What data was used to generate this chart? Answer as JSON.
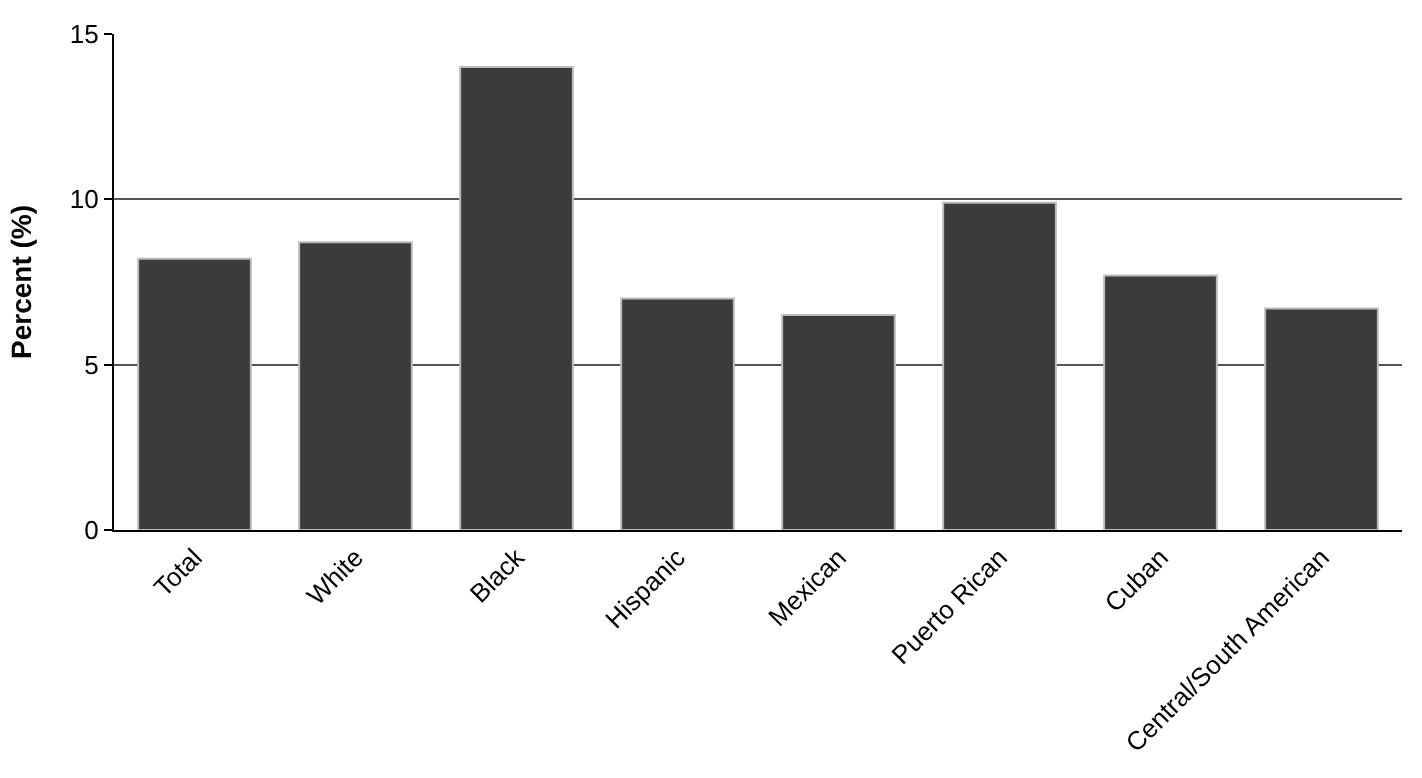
{
  "chart_data": {
    "type": "bar",
    "ylabel": "Percent (%)",
    "categories": [
      "Total",
      "White",
      "Black",
      "Hispanic",
      "Mexican",
      "Puerto Rican",
      "Cuban",
      "Central/South American"
    ],
    "values": [
      8.2,
      8.7,
      14.0,
      7.0,
      6.5,
      9.9,
      7.7,
      6.7
    ],
    "color": "#3b3b3b",
    "ylim": [
      0,
      15
    ],
    "yticks": [
      0,
      5,
      10,
      15
    ],
    "grid": "y",
    "legend": false
  }
}
